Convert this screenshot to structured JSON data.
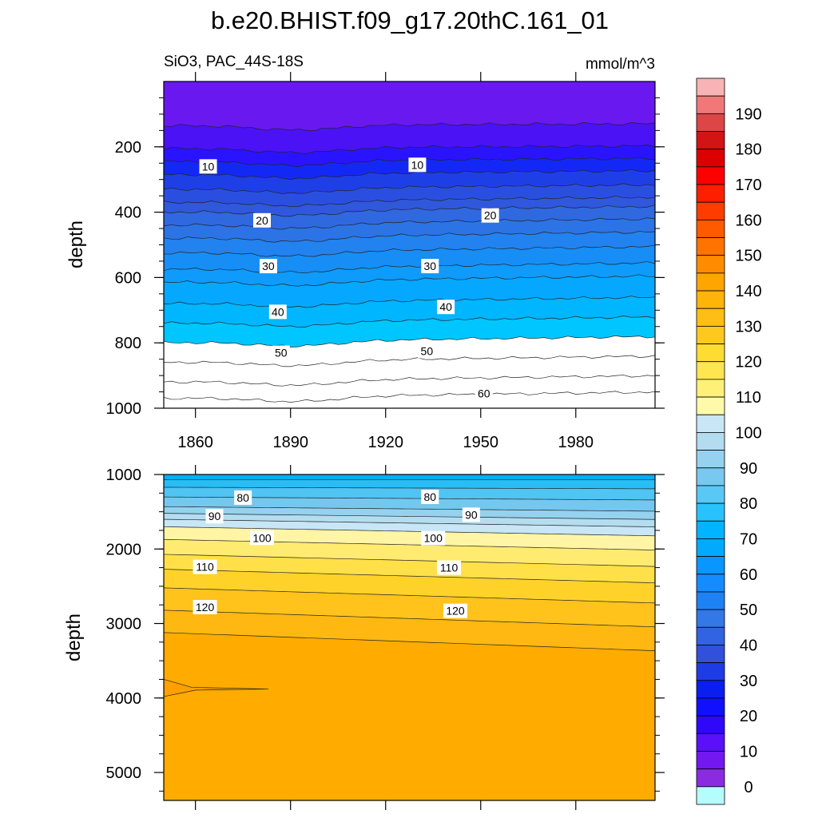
{
  "chart_data": {
    "type": "contour",
    "title": "b.e20.BHIST.f09_g17.20thC.161_01",
    "variable_label": "SiO3, PAC_44S-18S",
    "units_label": "mmol/m^3",
    "colorbar": {
      "ticks": [
        "0",
        "10",
        "20",
        "30",
        "40",
        "50",
        "60",
        "70",
        "80",
        "90",
        "100",
        "110",
        "120",
        "130",
        "140",
        "150",
        "160",
        "170",
        "180",
        "190"
      ],
      "levels": [
        0,
        5,
        10,
        15,
        20,
        25,
        30,
        35,
        40,
        45,
        50,
        55,
        60,
        65,
        70,
        75,
        80,
        85,
        90,
        95,
        100,
        105,
        110,
        115,
        120,
        125,
        130,
        135,
        140,
        145,
        150,
        155,
        160,
        165,
        170,
        175,
        180,
        185,
        190,
        195
      ],
      "colors": [
        "#b5fdfd",
        "#8a2be2",
        "#7218f0",
        "#5a10f8",
        "#2f08fa",
        "#1010ff",
        "#0a1ef0",
        "#1e3ce6",
        "#3250dc",
        "#3264e1",
        "#3278e6",
        "#1e82f5",
        "#148cff",
        "#0a96ff",
        "#00aaff",
        "#00b4ff",
        "#28c3ff",
        "#5ac8f5",
        "#78c8f0",
        "#96d2f0",
        "#b4dcf0",
        "#c8e6f5",
        "#fffaaa",
        "#fff078",
        "#ffe650",
        "#ffdc32",
        "#ffc81e",
        "#ffbe14",
        "#ffb40a",
        "#ffa500",
        "#ff8c00",
        "#ff7300",
        "#ff5a00",
        "#ff3c00",
        "#ff1e00",
        "#ff0000",
        "#dc0000",
        "#d21414",
        "#dc4646",
        "#f07878",
        "#f8b4b4"
      ]
    },
    "top_panel": {
      "ylabel": "depth",
      "yticks": [
        "200",
        "400",
        "600",
        "800",
        "1000"
      ],
      "xticks": [
        "1860",
        "1890",
        "1920",
        "1950",
        "1980"
      ],
      "x_range": [
        1850,
        2005
      ],
      "y_range": [
        0,
        1000
      ],
      "band_colors": [
        "#6a18f0",
        "#4a12f5",
        "#2a14ff",
        "#1428f5",
        "#1f3fe6",
        "#2a4fe0",
        "#3058dc",
        "#3068e0",
        "#2c74e6",
        "#2282ef",
        "#168ef6",
        "#0e9bfb",
        "#06a8ff",
        "#00b6ff",
        "#00c6ff"
      ],
      "contour_depths": [
        135,
        205,
        245,
        285,
        330,
        370,
        400,
        440,
        480,
        525,
        575,
        615,
        680,
        740,
        800,
        860,
        920,
        970
      ],
      "contour_labels": [
        {
          "text": "10",
          "x": 1864,
          "depth": 260
        },
        {
          "text": "10",
          "x": 1930,
          "depth": 255
        },
        {
          "text": "20",
          "x": 1881,
          "depth": 425
        },
        {
          "text": "20",
          "x": 1953,
          "depth": 410
        },
        {
          "text": "30",
          "x": 1883,
          "depth": 565
        },
        {
          "text": "30",
          "x": 1934,
          "depth": 565
        },
        {
          "text": "40",
          "x": 1886,
          "depth": 705
        },
        {
          "text": "40",
          "x": 1939,
          "depth": 690
        },
        {
          "text": "50",
          "x": 1887,
          "depth": 830
        },
        {
          "text": "50",
          "x": 1933,
          "depth": 825
        },
        {
          "text": "60",
          "x": 1951,
          "depth": 955
        }
      ]
    },
    "bottom_panel": {
      "ylabel": "depth",
      "yticks": [
        "1000",
        "2000",
        "3000",
        "4000",
        "5000"
      ],
      "y_range": [
        1000,
        5375
      ],
      "band_colors": [
        "#00b0f5",
        "#28bdf5",
        "#50c4f2",
        "#74c8ef",
        "#94d2ef",
        "#b4ddf0",
        "#c8e6f5",
        "#fff5a5",
        "#ffeb70",
        "#ffe048",
        "#ffd22a",
        "#ffc31c",
        "#ffb812",
        "#ffab00"
      ],
      "contour_depths": [
        1050,
        1150,
        1280,
        1410,
        1500,
        1580,
        1680,
        1850,
        2050,
        2250,
        2500,
        2800,
        3100
      ],
      "contour_labels": [
        {
          "text": "80",
          "x": 1875,
          "depth": 1310
        },
        {
          "text": "80",
          "x": 1934,
          "depth": 1300
        },
        {
          "text": "90",
          "x": 1866,
          "depth": 1560
        },
        {
          "text": "90",
          "x": 1947,
          "depth": 1540
        },
        {
          "text": "100",
          "x": 1881,
          "depth": 1850
        },
        {
          "text": "100",
          "x": 1935,
          "depth": 1855
        },
        {
          "text": "110",
          "x": 1863,
          "depth": 2240
        },
        {
          "text": "110",
          "x": 1940,
          "depth": 2250
        },
        {
          "text": "120",
          "x": 1863,
          "depth": 2780
        },
        {
          "text": "120",
          "x": 1942,
          "depth": 2830
        }
      ],
      "deep_patch": "#ffa000"
    }
  }
}
